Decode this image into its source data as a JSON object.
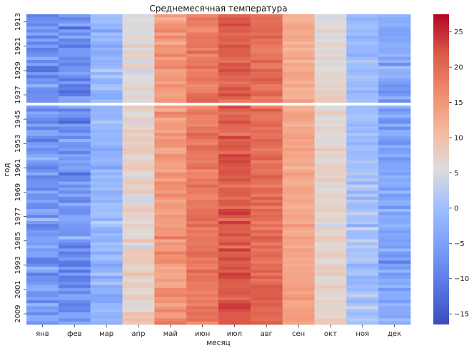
{
  "chart_data": {
    "type": "heatmap",
    "title": "Среднемесячная температура",
    "xlabel": "месяц",
    "ylabel": "год",
    "categories": [
      "янв",
      "фев",
      "мар",
      "апр",
      "май",
      "июн",
      "июл",
      "авг",
      "сен",
      "окт",
      "ноя",
      "дек"
    ],
    "year_range": [
      1911,
      2012
    ],
    "y_tick_labels": [
      "1913",
      "1921",
      "1929",
      "1937",
      "1945",
      "1953",
      "1961",
      "1969",
      "1977",
      "1985",
      "1993",
      "2001",
      "2009"
    ],
    "monthly_mean": [
      -6.5,
      -6.5,
      -1.3,
      7.0,
      14.8,
      18.4,
      21.3,
      19.8,
      13.0,
      6.5,
      0.2,
      -4.2
    ],
    "monthly_spread": [
      3.5,
      4.0,
      2.8,
      2.2,
      2.0,
      1.6,
      2.0,
      1.6,
      1.3,
      1.5,
      2.2,
      3.0
    ],
    "missing_cells": [
      {
        "year": 1940,
        "months": [
          "янв",
          "фев",
          "мар",
          "апр",
          "май",
          "июн",
          "июл",
          "авг",
          "сен",
          "окт",
          "ноя",
          "дек"
        ]
      }
    ],
    "colorbar": {
      "colormap": "coolwarm",
      "range": [
        -16.5,
        27.5
      ],
      "ticks": [
        "-15",
        "-10",
        "-5",
        "0",
        "5",
        "10",
        "15",
        "20",
        "25"
      ]
    }
  }
}
